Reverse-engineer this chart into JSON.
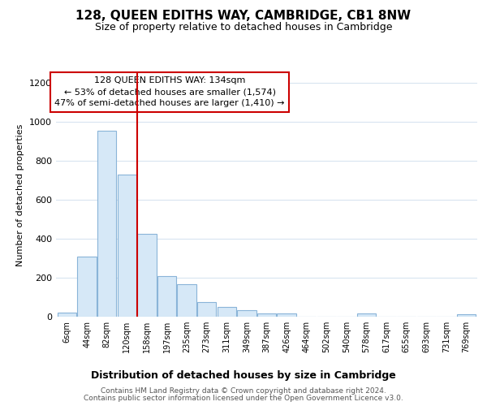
{
  "title": "128, QUEEN EDITHS WAY, CAMBRIDGE, CB1 8NW",
  "subtitle": "Size of property relative to detached houses in Cambridge",
  "xlabel": "Distribution of detached houses by size in Cambridge",
  "ylabel": "Number of detached properties",
  "bin_labels": [
    "6sqm",
    "44sqm",
    "82sqm",
    "120sqm",
    "158sqm",
    "197sqm",
    "235sqm",
    "273sqm",
    "311sqm",
    "349sqm",
    "387sqm",
    "426sqm",
    "464sqm",
    "502sqm",
    "540sqm",
    "578sqm",
    "617sqm",
    "655sqm",
    "693sqm",
    "731sqm",
    "769sqm"
  ],
  "bar_heights": [
    22,
    308,
    955,
    730,
    425,
    210,
    165,
    75,
    50,
    32,
    18,
    15,
    0,
    0,
    0,
    15,
    0,
    0,
    0,
    0,
    12
  ],
  "bar_color": "#d6e8f7",
  "bar_edge_color": "#8ab4d8",
  "vline_color": "#cc0000",
  "annotation_text": "128 QUEEN EDITHS WAY: 134sqm\n← 53% of detached houses are smaller (1,574)\n47% of semi-detached houses are larger (1,410) →",
  "annotation_box_color": "#ffffff",
  "annotation_box_edge": "#cc0000",
  "ylim": [
    0,
    1250
  ],
  "yticks": [
    0,
    200,
    400,
    600,
    800,
    1000,
    1200
  ],
  "footer_line1": "Contains HM Land Registry data © Crown copyright and database right 2024.",
  "footer_line2": "Contains public sector information licensed under the Open Government Licence v3.0.",
  "background_color": "#ffffff",
  "plot_bg_color": "#ffffff",
  "grid_color": "#d8e4f0"
}
